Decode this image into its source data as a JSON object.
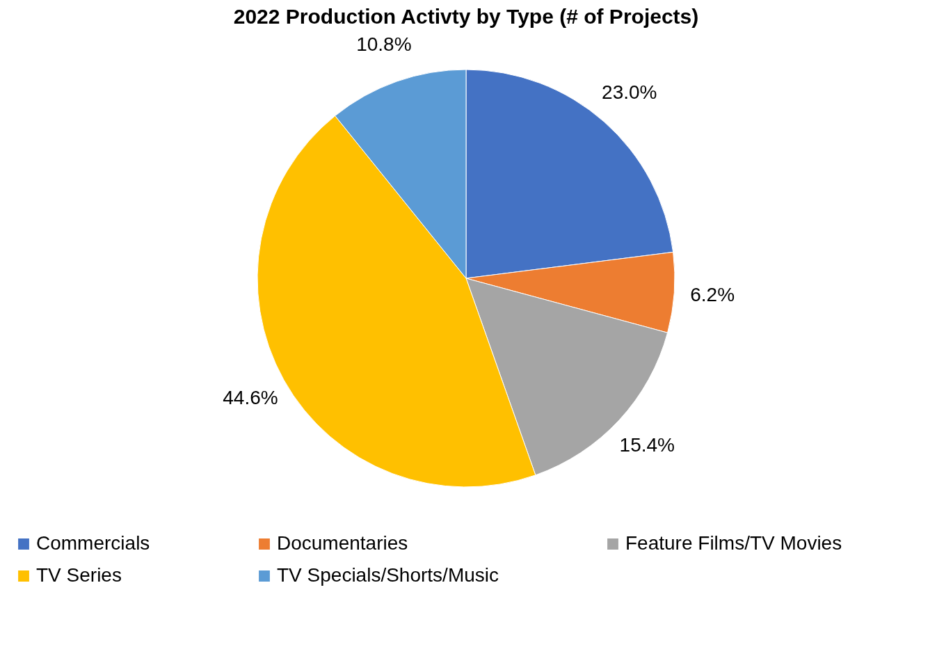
{
  "chart_data": {
    "type": "pie",
    "title": "2022 Production Activty by Type (# of Projects)",
    "categories": [
      "Commercials",
      "Documentaries",
      "Feature Films/TV Movies",
      "TV Series",
      "TV Specials/Shorts/Music"
    ],
    "values": [
      23.0,
      6.2,
      15.4,
      44.6,
      10.8
    ],
    "colors": [
      "#4472c4",
      "#ed7d31",
      "#a5a5a5",
      "#ffc000",
      "#5b9bd5"
    ],
    "value_labels": [
      "23.0%",
      "6.2%",
      "15.4%",
      "44.6%",
      "10.8%"
    ],
    "legend": "bottom"
  }
}
